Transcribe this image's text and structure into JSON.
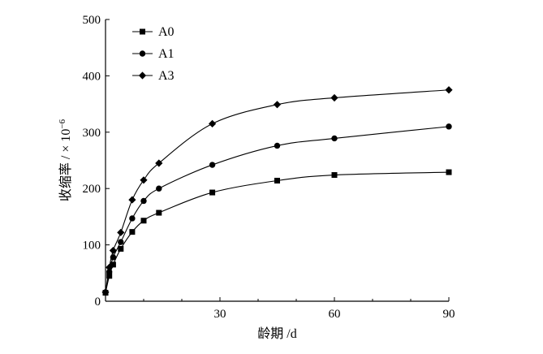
{
  "chart_data": {
    "type": "line",
    "xlabel": "龄期 /d",
    "ylabel": "收缩率 / × 10",
    "ylabel_exponent": "−6",
    "xlim": [
      0,
      90
    ],
    "ylim": [
      0,
      500
    ],
    "x_ticks": [
      30,
      60,
      90
    ],
    "y_ticks": [
      0,
      100,
      200,
      300,
      400,
      500
    ],
    "x_origin_label": "0",
    "grid": false,
    "legend_position": "top-left",
    "x": [
      0,
      1,
      2,
      4,
      7,
      10,
      14,
      28,
      45,
      60,
      90
    ],
    "series": [
      {
        "name": "A0",
        "marker": "square",
        "values": [
          15,
          45,
          65,
          93,
          123,
          143,
          157,
          193,
          214,
          224,
          229
        ]
      },
      {
        "name": "A1",
        "marker": "circle",
        "values": [
          16,
          52,
          78,
          105,
          147,
          178,
          200,
          242,
          276,
          289,
          310
        ]
      },
      {
        "name": "A3",
        "marker": "diamond",
        "values": [
          16,
          60,
          90,
          122,
          180,
          215,
          245,
          315,
          349,
          361,
          375
        ]
      }
    ]
  }
}
